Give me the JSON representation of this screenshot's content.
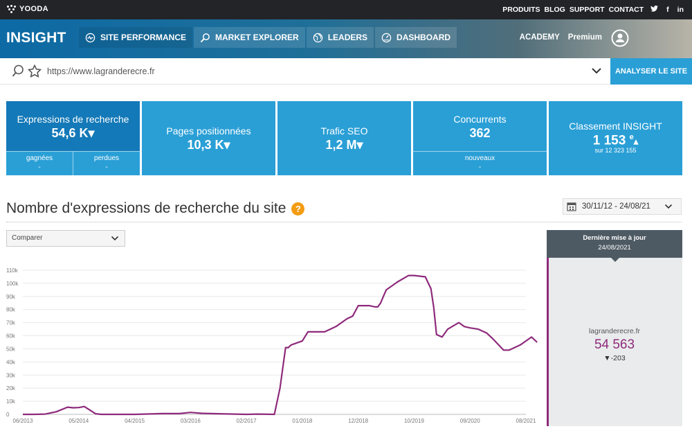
{
  "topbar": {
    "brand": "YOODA",
    "links": [
      "PRODUITS",
      "BLOG",
      "SUPPORT",
      "CONTACT"
    ],
    "social": {
      "twitter": "twitter-icon",
      "facebook": "f",
      "linkedin": "in"
    }
  },
  "header": {
    "logo": "INSIGHT",
    "nav": [
      {
        "label": "SITE PERFORMANCE",
        "icon": "pulse-icon"
      },
      {
        "label": "MARKET EXPLORER",
        "icon": "magnifier-icon"
      },
      {
        "label": "LEADERS",
        "icon": "globe-icon"
      },
      {
        "label": "DASHBOARD",
        "icon": "gauge-icon"
      }
    ],
    "academy": "ACADEMY",
    "plan": "Premium"
  },
  "urlbar": {
    "url": "https://www.lagranderecre.fr",
    "analyse_label": "ANALYSER LE SITE"
  },
  "cards": [
    {
      "label": "Expressions de recherche",
      "value": "54,6 K",
      "trend": "▾",
      "sub": [
        {
          "label": "gagnées",
          "value": "-"
        },
        {
          "label": "perdues",
          "value": "-"
        }
      ]
    },
    {
      "label": "Pages positionnées",
      "value": "10,3 K",
      "trend": "▾"
    },
    {
      "label": "Trafic SEO",
      "value": "1,2 M",
      "trend": "▾"
    },
    {
      "label": "Concurrents",
      "value": "362",
      "sub": [
        {
          "label": "nouveaux",
          "value": "-"
        }
      ]
    },
    {
      "label": "Classement INSIGHT",
      "value": "1 153",
      "sup": "e",
      "trend": "▴",
      "note": "sur 12 323 155"
    }
  ],
  "section": {
    "title": "Nombre d'expressions de recherche du site",
    "help": "?",
    "date_range": "30/11/12 - 24/08/21",
    "compare": "Comparer"
  },
  "side": {
    "title": "Dernière mise à jour",
    "date": "24/08/2021",
    "site": "lagranderecre.fr",
    "value": "54 563",
    "delta": "▼-203"
  },
  "colors": {
    "line": "#8e2a7b",
    "card": "#2a9fd6",
    "card_active": "#1479b8",
    "accent": "#f39c12"
  },
  "chart_data": {
    "type": "line",
    "title": "",
    "xlabel": "",
    "ylabel": "",
    "ylim": [
      0,
      110000
    ],
    "yticks": [
      "0",
      "10k",
      "20k",
      "30k",
      "40k",
      "50k",
      "60k",
      "70k",
      "80k",
      "90k",
      "100k",
      "110k"
    ],
    "xticks": [
      "06/2013",
      "05/2014",
      "04/2015",
      "03/2016",
      "02/2017",
      "01/2018",
      "12/2018",
      "10/2019",
      "09/2020",
      "08/2021"
    ],
    "grid": true,
    "series": [
      {
        "color": "#8e2a7b",
        "x": [
          0,
          0.1,
          0.2,
          0.4,
          0.6,
          0.8,
          0.9,
          1.0,
          1.1,
          1.3,
          1.4,
          1.5,
          2.0,
          2.5,
          2.8,
          3.0,
          3.2,
          3.5,
          4.0,
          4.2,
          4.5,
          4.6,
          4.7,
          4.75,
          4.8,
          5.0,
          5.1,
          5.3,
          5.35,
          5.4,
          5.6,
          5.8,
          5.9,
          6.0,
          6.2,
          6.3,
          6.35,
          6.4,
          6.45,
          6.5,
          6.7,
          6.9,
          7.0,
          7.2,
          7.3,
          7.35,
          7.4,
          7.5,
          7.6,
          7.8,
          7.9,
          8.0,
          8.15,
          8.3,
          8.4,
          8.6,
          8.7,
          8.9,
          9.0,
          9.1,
          9.2
        ],
        "y": [
          0,
          0,
          0,
          200,
          2000,
          5500,
          5000,
          5200,
          6000,
          500,
          0,
          0,
          0,
          600,
          600,
          1500,
          800,
          500,
          0,
          200,
          0,
          20000,
          51000,
          51000,
          53000,
          56000,
          63000,
          63000,
          63000,
          63000,
          67000,
          73000,
          75000,
          83000,
          83000,
          82000,
          82000,
          85000,
          90000,
          95000,
          101000,
          106000,
          106000,
          105000,
          96000,
          82000,
          61000,
          59000,
          65000,
          70000,
          67000,
          66000,
          65000,
          62000,
          58000,
          49000,
          49000,
          53000,
          56000,
          59000,
          55000
        ]
      }
    ]
  }
}
